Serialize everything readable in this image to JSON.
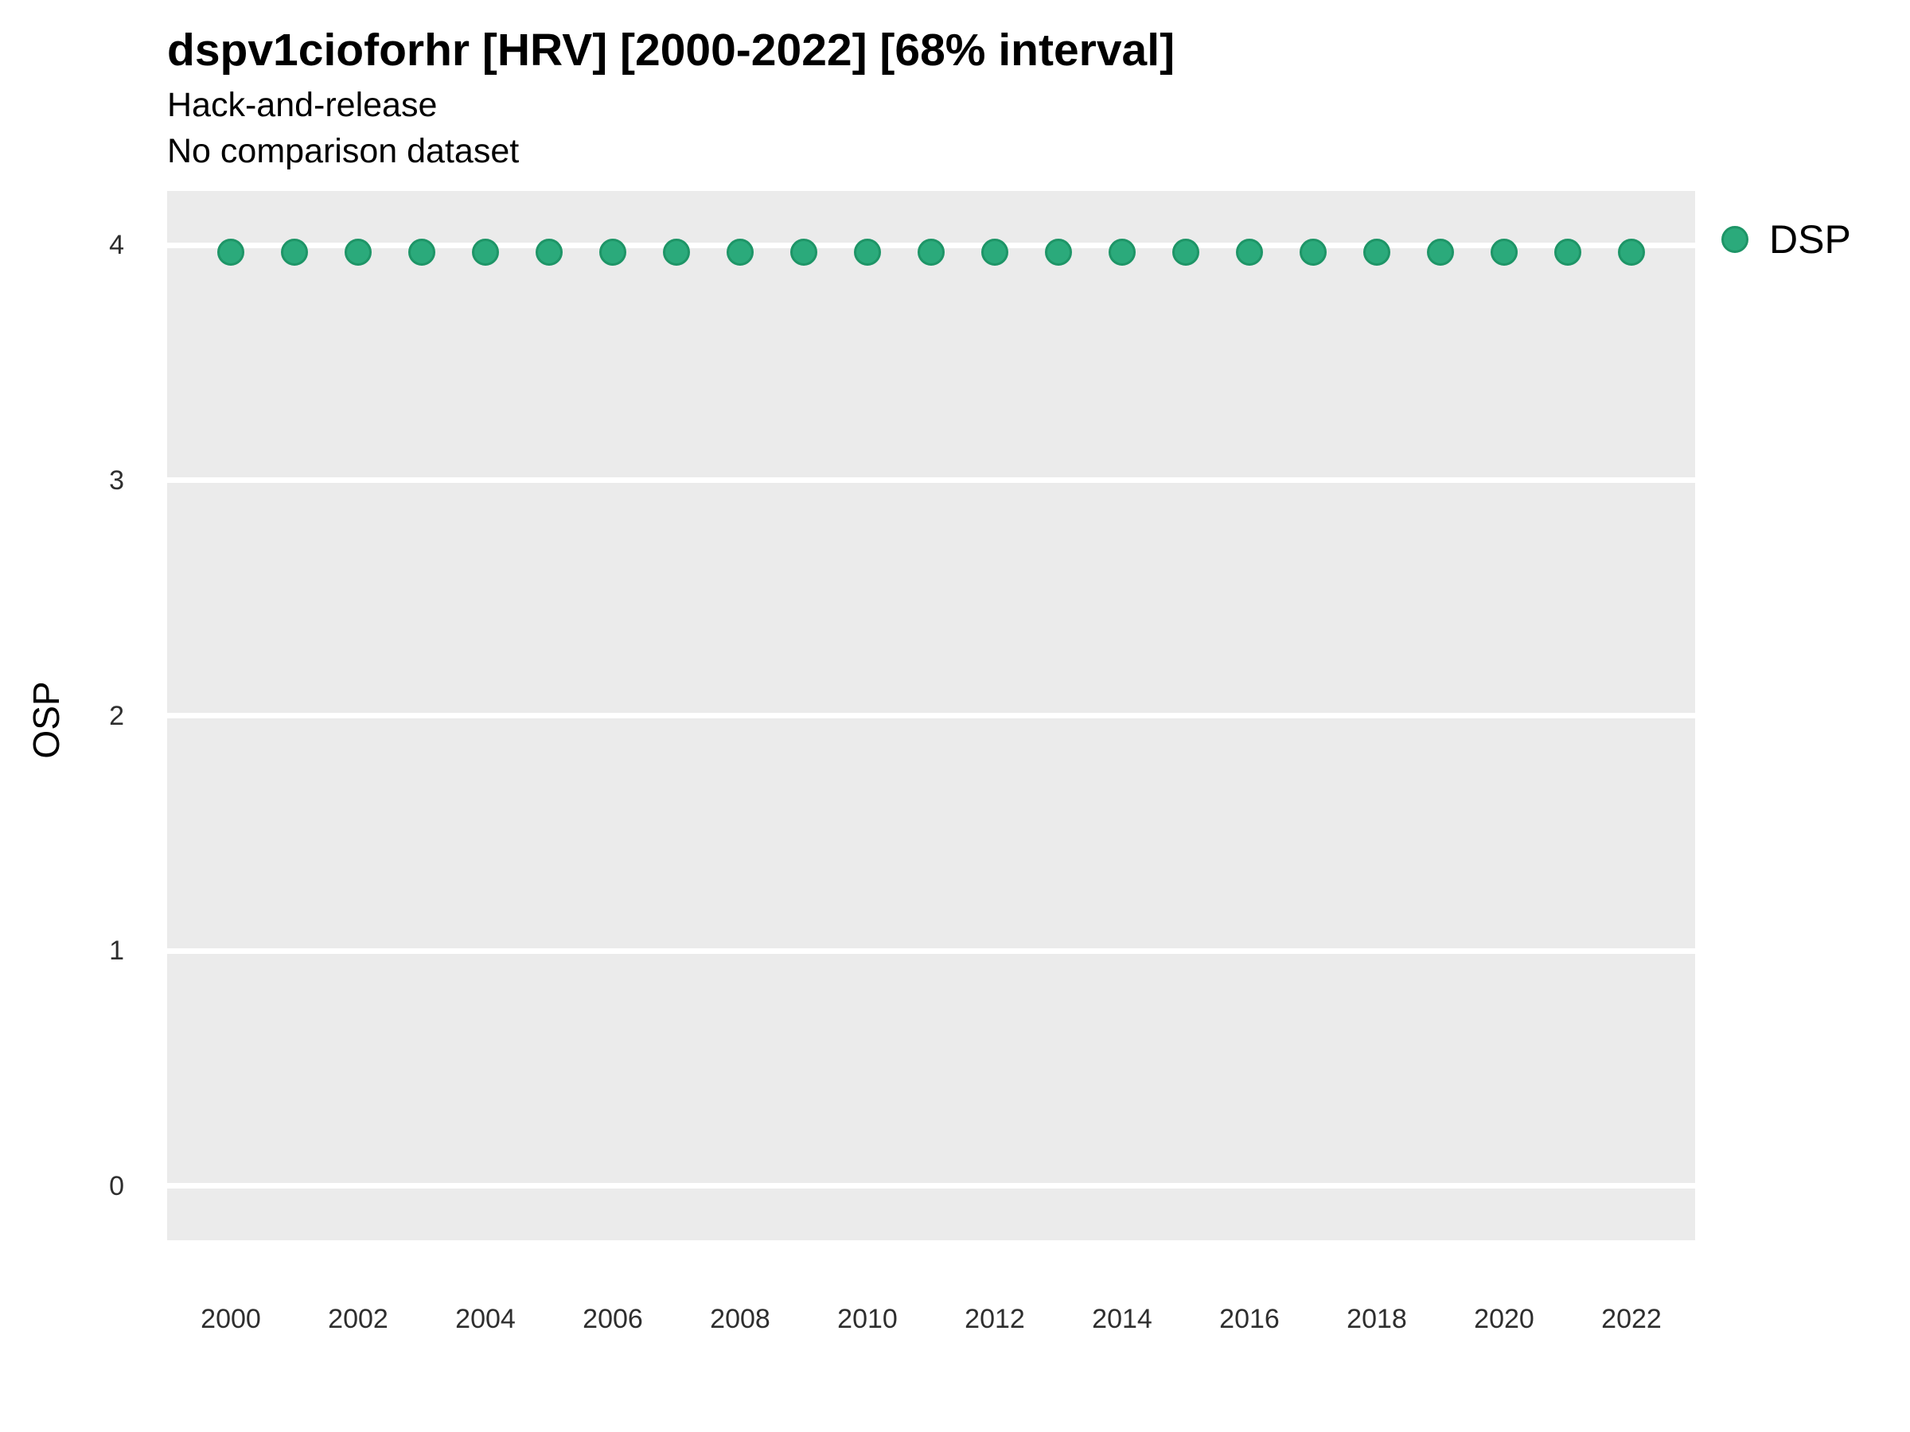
{
  "chart_data": {
    "type": "scatter",
    "title": "dspv1cioforhr [HRV] [2000-2022] [68% interval]",
    "subtitle1": "Hack-and-release",
    "subtitle2": "No comparison dataset",
    "xlabel": "",
    "ylabel": "OSP",
    "x": [
      2000,
      2001,
      2002,
      2003,
      2004,
      2005,
      2006,
      2007,
      2008,
      2009,
      2010,
      2011,
      2012,
      2013,
      2014,
      2015,
      2016,
      2017,
      2018,
      2019,
      2020,
      2021,
      2022
    ],
    "series": [
      {
        "name": "DSP",
        "color": "#2BAA7B",
        "edge_color": "#1E9567",
        "values": [
          3.97,
          3.97,
          3.97,
          3.97,
          3.97,
          3.97,
          3.97,
          3.97,
          3.97,
          3.97,
          3.97,
          3.97,
          3.97,
          3.97,
          3.97,
          3.97,
          3.97,
          3.97,
          3.97,
          3.97,
          3.97,
          3.97,
          3.97
        ]
      }
    ],
    "xticks": [
      2000,
      2002,
      2004,
      2006,
      2008,
      2010,
      2012,
      2014,
      2016,
      2018,
      2020,
      2022
    ],
    "yticks": [
      0,
      1,
      2,
      3,
      4
    ],
    "xlim": [
      1999,
      2023
    ],
    "ylim": [
      -0.23,
      4.23
    ],
    "grid": {
      "horizontal": true,
      "vertical": false,
      "color": "#FFFFFF"
    },
    "panel_bg": "#EBEBEB",
    "legend": {
      "position": "right-top",
      "label": "DSP"
    }
  }
}
